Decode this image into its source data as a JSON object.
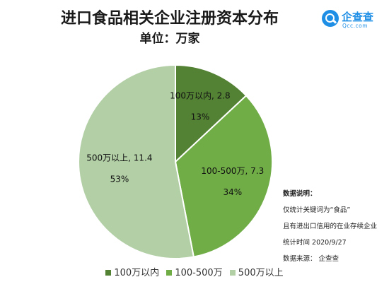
{
  "header": {
    "title": "进口食品相关企业注册资本分布",
    "subtitle": "单位：万家"
  },
  "logo": {
    "name": "企查查",
    "domain": "Qcc.com"
  },
  "chart_data": {
    "type": "pie",
    "title": "进口食品相关企业注册资本分布",
    "subtitle": "单位：万家",
    "legend_position": "bottom",
    "slices": [
      {
        "label": "100万以内",
        "value": 2.8,
        "percent": "13%",
        "value_label": "100万以内, 2.8",
        "color": "#548235"
      },
      {
        "label": "100-500万",
        "value": 7.3,
        "percent": "34%",
        "value_label": "100-500万, 7.3",
        "color": "#70ad47"
      },
      {
        "label": "500万以上",
        "value": 11.4,
        "percent": "53%",
        "value_label": "500万以上, 11.4",
        "color": "#b2cfa6"
      }
    ]
  },
  "notes": {
    "title": "数据说明：",
    "lines": [
      "仅统计关键词为“食品”",
      "且有进出口信用的在业存续企业",
      "统计时间 2020/9/27",
      "数据来源：  企查查"
    ]
  }
}
